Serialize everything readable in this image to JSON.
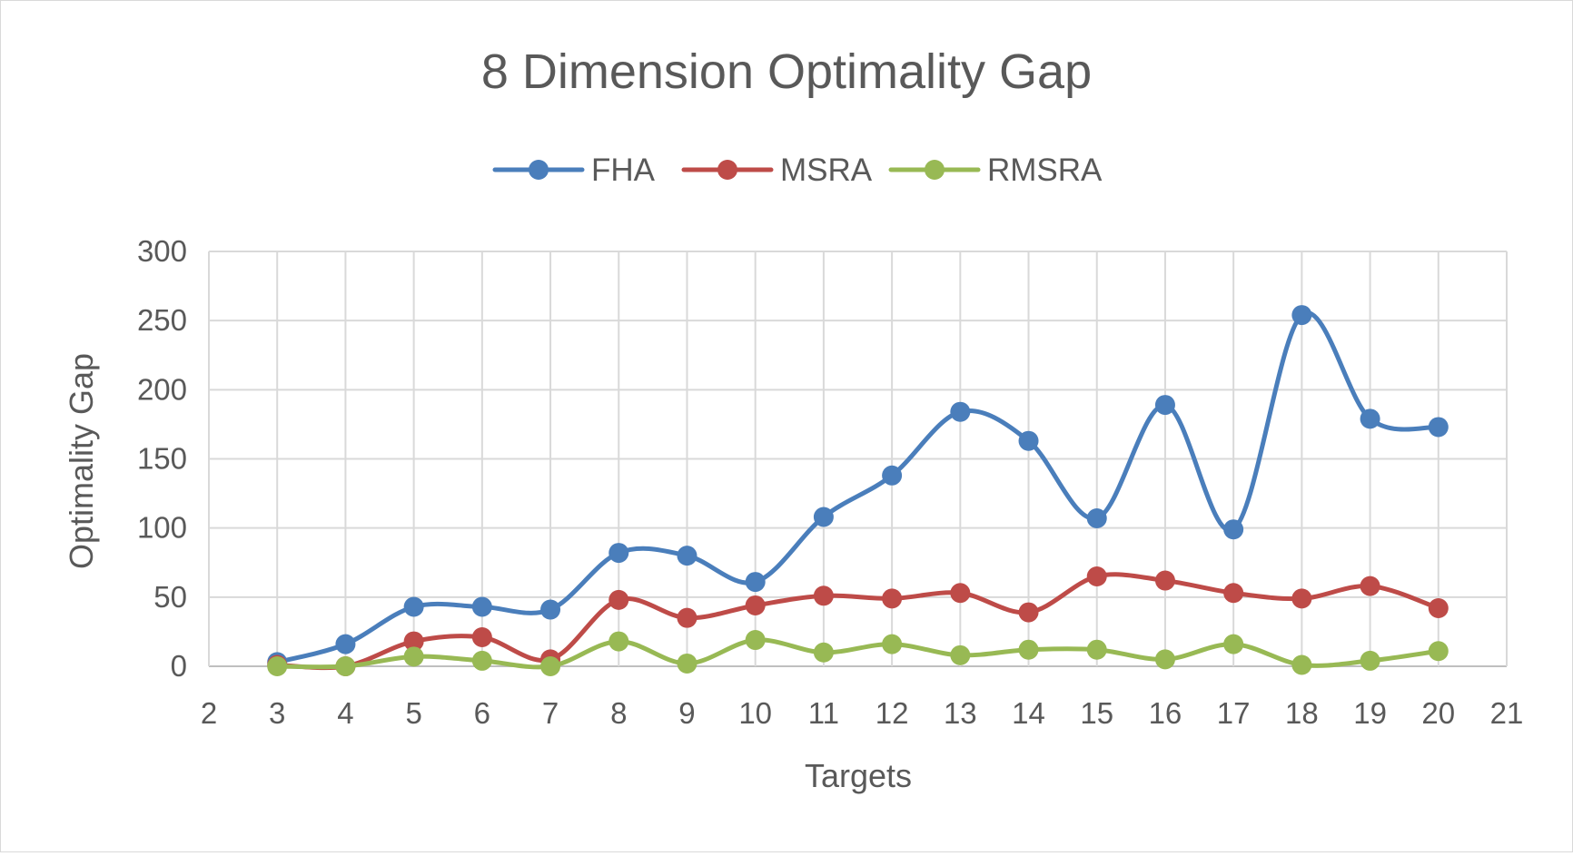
{
  "chart_data": {
    "type": "line",
    "title": "8 Dimension Optimality Gap",
    "xlabel": "Targets",
    "ylabel": "Optimality Gap",
    "xlim": [
      2,
      21
    ],
    "ylim": [
      0,
      300
    ],
    "x_ticks": [
      "2",
      "3",
      "4",
      "5",
      "6",
      "7",
      "8",
      "9",
      "10",
      "11",
      "12",
      "13",
      "14",
      "15",
      "16",
      "17",
      "18",
      "19",
      "20",
      "21"
    ],
    "y_ticks": [
      "0",
      "50",
      "100",
      "150",
      "200",
      "250",
      "300"
    ],
    "grid": true,
    "legend_position": "top",
    "smooth": true,
    "x": [
      3,
      4,
      5,
      6,
      7,
      8,
      9,
      10,
      11,
      12,
      13,
      14,
      15,
      16,
      17,
      18,
      19,
      20
    ],
    "series": [
      {
        "name": "FHA",
        "color": "#4a7ebb",
        "values": [
          3,
          16,
          43,
          43,
          41,
          82,
          80,
          61,
          108,
          138,
          184,
          163,
          107,
          189,
          99,
          254,
          179,
          173
        ]
      },
      {
        "name": "MSRA",
        "color": "#be4b48",
        "values": [
          1,
          0,
          18,
          21,
          5,
          48,
          35,
          44,
          51,
          49,
          53,
          39,
          65,
          62,
          53,
          49,
          58,
          42
        ]
      },
      {
        "name": "RMSRA",
        "color": "#98b954",
        "values": [
          0,
          0,
          7,
          4,
          0,
          18,
          2,
          19,
          10,
          16,
          8,
          12,
          12,
          5,
          16,
          1,
          4,
          11
        ]
      }
    ]
  }
}
